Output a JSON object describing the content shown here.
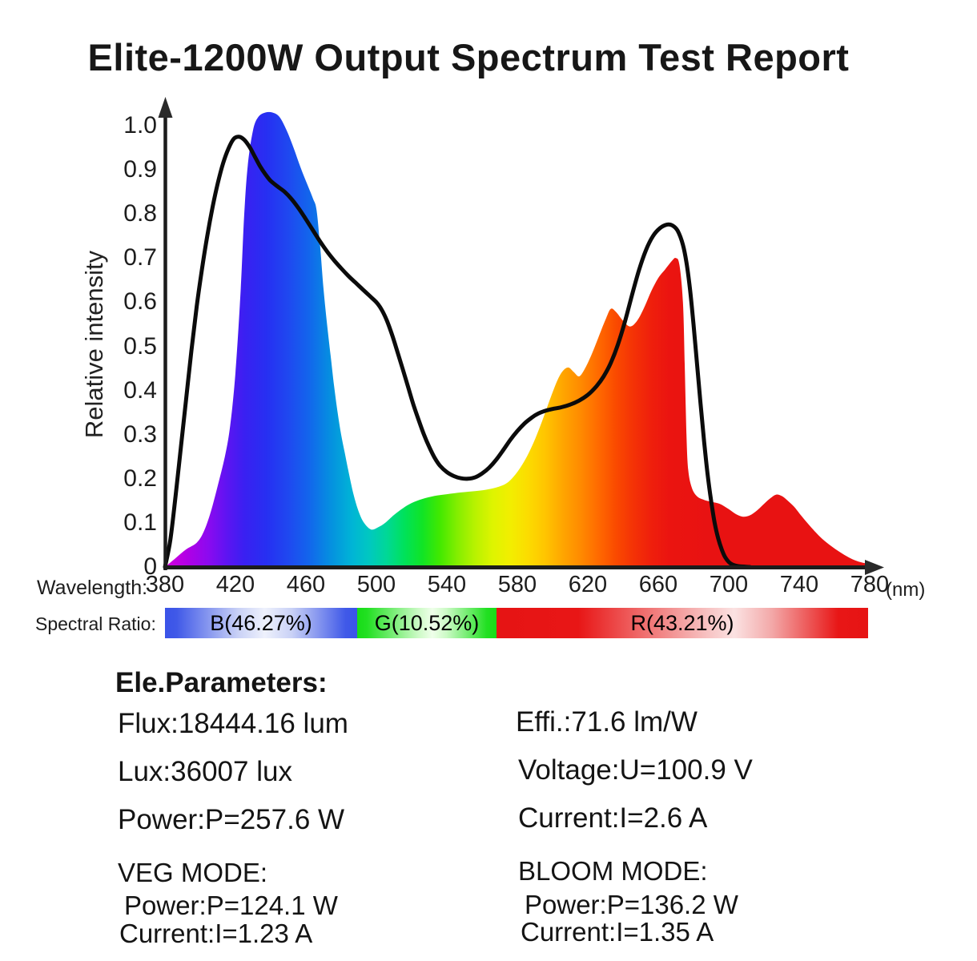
{
  "title": "Elite-1200W Output Spectrum Test Report",
  "chart": {
    "y_axis_label": "Relative intensity",
    "x_axis_prefix": "Wavelength:",
    "x_unit": "(nm)",
    "y_ticks": [
      "1.0",
      "0.9",
      "0.8",
      "0.7",
      "0.6",
      "0.5",
      "0.4",
      "0.3",
      "0.2",
      "0.1",
      "0"
    ],
    "x_ticks": [
      "380",
      "420",
      "460",
      "500",
      "540",
      "580",
      "620",
      "660",
      "700",
      "740",
      "780"
    ]
  },
  "chart_data": {
    "type": "area",
    "title": "Elite-1200W Output Spectrum Test Report",
    "xlabel": "Wavelength (nm)",
    "ylabel": "Relative intensity",
    "xlim": [
      380,
      780
    ],
    "ylim": [
      0,
      1.0
    ],
    "grid": false,
    "legend": "none",
    "series": [
      {
        "name": "led-output-spectrum-filled",
        "type": "area",
        "points": [
          [
            380,
            0
          ],
          [
            386,
            0.02
          ],
          [
            392,
            0.04
          ],
          [
            398,
            0.055
          ],
          [
            402,
            0.08
          ],
          [
            406,
            0.125
          ],
          [
            410,
            0.185
          ],
          [
            414,
            0.25
          ],
          [
            417,
            0.32
          ],
          [
            420,
            0.44
          ],
          [
            423,
            0.63
          ],
          [
            425,
            0.8
          ],
          [
            427,
            0.91
          ],
          [
            430,
            0.99
          ],
          [
            433,
            1.02
          ],
          [
            437,
            1.03
          ],
          [
            441,
            1.03
          ],
          [
            445,
            1.02
          ],
          [
            449,
            0.99
          ],
          [
            453,
            0.95
          ],
          [
            457,
            0.905
          ],
          [
            461,
            0.865
          ],
          [
            464,
            0.835
          ],
          [
            466,
            0.81
          ],
          [
            468,
            0.73
          ],
          [
            470,
            0.63
          ],
          [
            472,
            0.55
          ],
          [
            474,
            0.48
          ],
          [
            476,
            0.41
          ],
          [
            478,
            0.35
          ],
          [
            480,
            0.3
          ],
          [
            482,
            0.26
          ],
          [
            484,
            0.22
          ],
          [
            487,
            0.165
          ],
          [
            490,
            0.125
          ],
          [
            493,
            0.1
          ],
          [
            497,
            0.085
          ],
          [
            501,
            0.09
          ],
          [
            505,
            0.1
          ],
          [
            510,
            0.118
          ],
          [
            515,
            0.133
          ],
          [
            520,
            0.145
          ],
          [
            526,
            0.154
          ],
          [
            533,
            0.161
          ],
          [
            540,
            0.165
          ],
          [
            548,
            0.169
          ],
          [
            556,
            0.172
          ],
          [
            562,
            0.175
          ],
          [
            568,
            0.18
          ],
          [
            574,
            0.19
          ],
          [
            579,
            0.21
          ],
          [
            584,
            0.24
          ],
          [
            589,
            0.28
          ],
          [
            594,
            0.33
          ],
          [
            599,
            0.385
          ],
          [
            603,
            0.425
          ],
          [
            606,
            0.445
          ],
          [
            609,
            0.452
          ],
          [
            612,
            0.442
          ],
          [
            615,
            0.432
          ],
          [
            618,
            0.447
          ],
          [
            622,
            0.48
          ],
          [
            626,
            0.52
          ],
          [
            630,
            0.56
          ],
          [
            633,
            0.585
          ],
          [
            636,
            0.578
          ],
          [
            640,
            0.558
          ],
          [
            644,
            0.545
          ],
          [
            648,
            0.558
          ],
          [
            652,
            0.588
          ],
          [
            656,
            0.625
          ],
          [
            660,
            0.655
          ],
          [
            664,
            0.675
          ],
          [
            668,
            0.695
          ],
          [
            670,
            0.7
          ],
          [
            672,
            0.685
          ],
          [
            674,
            0.6
          ],
          [
            675,
            0.46
          ],
          [
            676,
            0.3
          ],
          [
            677,
            0.22
          ],
          [
            679,
            0.18
          ],
          [
            682,
            0.16
          ],
          [
            686,
            0.152
          ],
          [
            690,
            0.148
          ],
          [
            695,
            0.143
          ],
          [
            700,
            0.131
          ],
          [
            704,
            0.12
          ],
          [
            708,
            0.114
          ],
          [
            712,
            0.117
          ],
          [
            716,
            0.128
          ],
          [
            720,
            0.143
          ],
          [
            724,
            0.157
          ],
          [
            727,
            0.164
          ],
          [
            730,
            0.161
          ],
          [
            733,
            0.152
          ],
          [
            737,
            0.137
          ],
          [
            741,
            0.117
          ],
          [
            745,
            0.098
          ],
          [
            749,
            0.08
          ],
          [
            753,
            0.064
          ],
          [
            758,
            0.048
          ],
          [
            763,
            0.034
          ],
          [
            768,
            0.022
          ],
          [
            773,
            0.013
          ],
          [
            780,
            0.006
          ]
        ]
      },
      {
        "name": "reference-curve-black-outline",
        "type": "line",
        "color": "#0b0b0b",
        "points": [
          [
            380,
            0
          ],
          [
            383,
            0.06
          ],
          [
            386,
            0.16
          ],
          [
            389,
            0.27
          ],
          [
            392,
            0.38
          ],
          [
            395,
            0.49
          ],
          [
            398,
            0.59
          ],
          [
            401,
            0.675
          ],
          [
            404,
            0.75
          ],
          [
            407,
            0.815
          ],
          [
            410,
            0.87
          ],
          [
            413,
            0.915
          ],
          [
            416,
            0.948
          ],
          [
            419,
            0.97
          ],
          [
            422,
            0.975
          ],
          [
            425,
            0.968
          ],
          [
            428,
            0.952
          ],
          [
            431,
            0.93
          ],
          [
            434,
            0.908
          ],
          [
            437,
            0.89
          ],
          [
            440,
            0.875
          ],
          [
            444,
            0.862
          ],
          [
            448,
            0.85
          ],
          [
            452,
            0.833
          ],
          [
            456,
            0.812
          ],
          [
            460,
            0.788
          ],
          [
            464,
            0.763
          ],
          [
            468,
            0.738
          ],
          [
            472,
            0.715
          ],
          [
            476,
            0.695
          ],
          [
            480,
            0.677
          ],
          [
            484,
            0.66
          ],
          [
            488,
            0.645
          ],
          [
            492,
            0.63
          ],
          [
            496,
            0.615
          ],
          [
            500,
            0.6
          ],
          [
            503,
            0.583
          ],
          [
            506,
            0.558
          ],
          [
            509,
            0.525
          ],
          [
            512,
            0.487
          ],
          [
            515,
            0.448
          ],
          [
            518,
            0.408
          ],
          [
            521,
            0.368
          ],
          [
            524,
            0.333
          ],
          [
            527,
            0.3
          ],
          [
            530,
            0.272
          ],
          [
            533,
            0.248
          ],
          [
            536,
            0.23
          ],
          [
            540,
            0.215
          ],
          [
            544,
            0.206
          ],
          [
            548,
            0.201
          ],
          [
            552,
            0.2
          ],
          [
            556,
            0.203
          ],
          [
            560,
            0.212
          ],
          [
            564,
            0.225
          ],
          [
            568,
            0.243
          ],
          [
            572,
            0.265
          ],
          [
            576,
            0.288
          ],
          [
            580,
            0.308
          ],
          [
            584,
            0.325
          ],
          [
            588,
            0.338
          ],
          [
            592,
            0.348
          ],
          [
            596,
            0.354
          ],
          [
            600,
            0.358
          ],
          [
            605,
            0.362
          ],
          [
            610,
            0.368
          ],
          [
            615,
            0.377
          ],
          [
            620,
            0.39
          ],
          [
            625,
            0.41
          ],
          [
            629,
            0.432
          ],
          [
            633,
            0.462
          ],
          [
            637,
            0.503
          ],
          [
            641,
            0.555
          ],
          [
            645,
            0.615
          ],
          [
            649,
            0.672
          ],
          [
            653,
            0.718
          ],
          [
            657,
            0.75
          ],
          [
            661,
            0.768
          ],
          [
            665,
            0.776
          ],
          [
            668,
            0.774
          ],
          [
            671,
            0.762
          ],
          [
            674,
            0.73
          ],
          [
            676,
            0.69
          ],
          [
            678,
            0.63
          ],
          [
            680,
            0.55
          ],
          [
            682,
            0.46
          ],
          [
            684,
            0.37
          ],
          [
            686,
            0.285
          ],
          [
            688,
            0.21
          ],
          [
            690,
            0.15
          ],
          [
            692,
            0.1
          ],
          [
            694,
            0.065
          ],
          [
            696,
            0.04
          ],
          [
            698,
            0.022
          ],
          [
            701,
            0.008
          ],
          [
            705,
            0.002
          ],
          [
            712,
            0
          ]
        ]
      }
    ],
    "fill_gradient_stops": [
      [
        380,
        "#d400dc"
      ],
      [
        393,
        "#b000e6"
      ],
      [
        405,
        "#8a0af0"
      ],
      [
        415,
        "#5e14f2"
      ],
      [
        425,
        "#3a20f2"
      ],
      [
        438,
        "#2630f2"
      ],
      [
        450,
        "#1f48f0"
      ],
      [
        462,
        "#1266ec"
      ],
      [
        474,
        "#0590e0"
      ],
      [
        486,
        "#00b4d6"
      ],
      [
        496,
        "#00c8c0"
      ],
      [
        506,
        "#00d896"
      ],
      [
        516,
        "#00e25a"
      ],
      [
        526,
        "#10e426"
      ],
      [
        536,
        "#42e900"
      ],
      [
        546,
        "#84ee00"
      ],
      [
        556,
        "#b8f200"
      ],
      [
        566,
        "#def400"
      ],
      [
        576,
        "#f2ee00"
      ],
      [
        586,
        "#fcdc00"
      ],
      [
        596,
        "#ffc400"
      ],
      [
        606,
        "#ffa500"
      ],
      [
        616,
        "#ff8a00"
      ],
      [
        626,
        "#ff6a00"
      ],
      [
        636,
        "#fa4a00"
      ],
      [
        646,
        "#f43206"
      ],
      [
        656,
        "#ef1f0c"
      ],
      [
        666,
        "#eb1410"
      ],
      [
        690,
        "#e81212"
      ],
      [
        780,
        "#e81212"
      ]
    ]
  },
  "spectral_ratio": {
    "label": "Spectral Ratio:",
    "segments": [
      {
        "label": "B(46.27%)",
        "color": "#3a53e8"
      },
      {
        "label": "G(10.52%)",
        "color": "#17dc17"
      },
      {
        "label": "R(43.21%)",
        "color": "#e61414"
      }
    ]
  },
  "parameters": {
    "heading": "Ele.Parameters:",
    "flux": "Flux:18444.16 lum",
    "lux": "Lux:36007 lux",
    "power": "Power:P=257.6 W",
    "efficiency": "Effi.:71.6 lm/W",
    "voltage": "Voltage:U=100.9 V",
    "current": "Current:I=2.6 A"
  },
  "veg_mode": {
    "heading": "VEG MODE:",
    "power": "Power:P=124.1 W",
    "current": "Current:I=1.23 A"
  },
  "bloom_mode": {
    "heading": "BLOOM MODE:",
    "power": "Power:P=136.2 W",
    "current": "Current:I=1.35 A"
  },
  "colors": {
    "mode_heading_red": "#c43b3b",
    "text": "#141414",
    "axis": "#1c1c1c",
    "reference_curve": "#0b0b0b"
  }
}
